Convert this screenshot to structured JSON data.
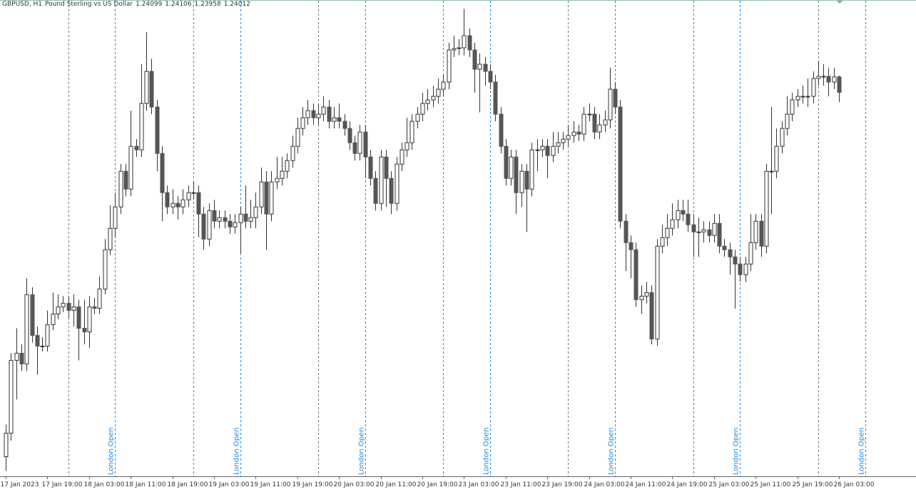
{
  "chart_data": {
    "type": "candlestick",
    "title": "GBPUSD, H1",
    "subtitle": "Pound Sterling vs US Dollar",
    "ylim": [
      1.2186,
      1.2453
    ],
    "categories": [
      "17 Jan 2023",
      null,
      null,
      null,
      null,
      null,
      null,
      null,
      "17 Jan 19:00",
      null,
      null,
      null,
      null,
      null,
      null,
      null,
      "18 Jan 03:00",
      null,
      null,
      null,
      null,
      null,
      null,
      null,
      "18 Jan 11:00",
      null,
      null,
      null,
      null,
      null,
      null,
      null,
      "18 Jan 19:00",
      null,
      null,
      null,
      null,
      null,
      null,
      null,
      "19 Jan 03:00",
      null,
      null,
      null,
      null,
      null,
      null,
      null,
      "19 Jan 11:00",
      null,
      null,
      null,
      null,
      null,
      null,
      null,
      "19 Jan 19:00",
      null,
      null,
      null,
      null,
      null,
      null,
      null,
      "20 Jan 03:00",
      null,
      null,
      null,
      null,
      null,
      null,
      null,
      "20 Jan 11:00",
      null,
      null,
      null,
      null,
      null,
      null,
      null,
      "20 Jan 19:00",
      null,
      null,
      null,
      null,
      null,
      null,
      null,
      "23 Jan 03:00",
      null,
      null,
      null,
      null,
      null,
      null,
      null,
      "23 Jan 11:00",
      null,
      null,
      null,
      null,
      null,
      null,
      null,
      "23 Jan 19:00",
      null,
      null,
      null,
      null,
      null,
      null,
      null,
      "24 Jan 03:00",
      null,
      null,
      null,
      null,
      null,
      null,
      null,
      "24 Jan 11:00",
      null,
      null,
      null,
      null,
      null,
      null,
      null,
      "24 Jan 19:00",
      null,
      null,
      null,
      null,
      null,
      null,
      null,
      "25 Jan 03:00",
      null,
      null,
      null,
      null,
      null,
      null,
      null,
      "25 Jan 11:00",
      null,
      null,
      null,
      null,
      null,
      null,
      null,
      "25 Jan 19:00",
      null,
      null,
      null,
      null,
      null,
      null,
      null,
      "26 Jan 03:00"
    ],
    "open": [
      1.2197,
      1.22102,
      1.2251,
      1.2255,
      1.2249,
      1.22878,
      1.2265,
      1.2259,
      1.2259,
      1.2271,
      1.2277,
      1.2281,
      1.2283,
      1.2279,
      1.2281,
      1.2269,
      1.2267,
      1.2281,
      1.22802,
      1.2291,
      1.2313,
      1.2325,
      1.2337,
      1.2357,
      1.2347,
      1.2371,
      1.2369,
      1.2395,
      1.2413,
      1.2393,
      1.2367,
      1.2345,
      1.2337,
      1.2339,
      1.2337,
      1.2341,
      1.2345,
      1.2345,
      1.2333,
      1.2319,
      1.2335,
      1.2329,
      1.2331,
      1.2329,
      1.23258,
      1.23282,
      1.2333,
      1.2329,
      1.2331,
      1.2337,
      1.2351,
      1.2333,
      1.2351,
      1.2353,
      1.2357,
      1.2363,
      1.2371,
      1.2381,
      1.2387,
      1.2391,
      1.2387,
      1.2389,
      1.2393,
      1.2385,
      1.2387,
      1.2385,
      1.2381,
      1.2373,
      1.2367,
      1.2379,
      1.2365,
      1.2353,
      1.2339,
      1.2365,
      1.2353,
      1.2339,
      1.2361,
      1.2369,
      1.2373,
      1.2385,
      1.2389,
      1.2395,
      1.2397,
      1.2399,
      1.2403,
      1.2407,
      1.2425,
      1.24258,
      1.24262,
      1.2433,
      1.2425,
      1.24142,
      1.2417,
      1.2413,
      1.2407,
      1.2389,
      1.2371,
      1.2353,
      1.2365,
      1.2345,
      1.2357,
      1.2347,
      1.2369,
      1.2369,
      1.2371,
      1.23658,
      1.2371,
      1.2373,
      1.2375,
      1.2377,
      1.2379,
      1.23778,
      1.2389,
      1.2389,
      1.2379,
      1.2383,
      1.23858,
      1.2403,
      1.2393,
      1.2329,
      1.2317,
      1.2313,
      1.2285,
      1.2287,
      1.2289,
      1.2263,
      1.2315,
      1.23198,
      1.2325,
      1.23298,
      1.2335,
      1.2333,
      1.2327,
      1.2323,
      1.2323,
      1.23242,
      1.2321,
      1.23278,
      1.2315,
      1.2313,
      1.2309,
      1.2305,
      1.2299,
      1.2305,
      1.2317,
      1.2329,
      1.2315,
      1.2357,
      1.2357,
      1.2371,
      1.2381,
      1.2389,
      1.2397,
      1.2399,
      1.2399,
      1.2399,
      1.2409,
      1.24102,
      1.24102,
      1.2407,
      1.24099
    ],
    "high": [
      1.2215,
      1.2255,
      1.2269,
      1.226,
      1.2297,
      1.2292,
      1.227,
      1.2264,
      1.2279,
      1.2289,
      1.2288,
      1.2287,
      1.2287,
      1.2288,
      1.2285,
      1.2285,
      1.2287,
      1.2286,
      1.2298,
      1.2319,
      1.2338,
      1.2345,
      1.2361,
      1.2361,
      1.2391,
      1.2375,
      1.2417,
      1.2435,
      1.242,
      1.2397,
      1.2371,
      1.2349,
      1.2347,
      1.2343,
      1.2347,
      1.2349,
      1.2351,
      1.2349,
      1.2337,
      1.2339,
      1.2341,
      1.2335,
      1.2335,
      1.2333,
      1.2333,
      1.2337,
      1.2349,
      1.2341,
      1.2345,
      1.2359,
      1.2357,
      1.2357,
      1.2365,
      1.2365,
      1.2367,
      1.2377,
      1.2387,
      1.2393,
      1.2397,
      1.2395,
      1.2395,
      1.2399,
      1.2397,
      1.2393,
      1.2395,
      1.2389,
      1.2385,
      1.2377,
      1.2383,
      1.2383,
      1.2369,
      1.2357,
      1.2369,
      1.2369,
      1.2357,
      1.2365,
      1.2373,
      1.2387,
      1.2389,
      1.2393,
      1.2401,
      1.2403,
      1.2405,
      1.2409,
      1.2411,
      1.2429,
      1.2433,
      1.2431,
      1.2448,
      1.2437,
      1.2429,
      1.2423,
      1.2421,
      1.2417,
      1.2411,
      1.2393,
      1.2375,
      1.2369,
      1.2369,
      1.2361,
      1.2361,
      1.2373,
      1.2375,
      1.2375,
      1.2375,
      1.2379,
      1.2379,
      1.2379,
      1.2383,
      1.2385,
      1.2383,
      1.2393,
      1.2395,
      1.2393,
      1.2389,
      1.2391,
      1.2415,
      1.2407,
      1.2397,
      1.2333,
      1.2321,
      1.2317,
      1.2293,
      1.2295,
      1.2293,
      1.2319,
      1.2327,
      1.2333,
      1.2339,
      1.2341,
      1.2341,
      1.2341,
      1.2333,
      1.2331,
      1.2329,
      1.2329,
      1.2333,
      1.2333,
      1.2319,
      1.2317,
      1.2313,
      1.2309,
      1.2309,
      1.2333,
      1.2333,
      1.2333,
      1.2361,
      1.2393,
      1.2381,
      1.2385,
      1.2399,
      1.2401,
      1.2403,
      1.2405,
      1.2409,
      1.2413,
      1.2419,
      1.2417,
      1.2415,
      1.2415,
      1.24106
    ],
    "low": [
      1.2189,
      1.2206,
      1.2229,
      1.2245,
      1.2245,
      1.2261,
      1.2243,
      1.2256,
      1.2256,
      1.2268,
      1.2274,
      1.2278,
      1.2275,
      1.227,
      1.2251,
      1.226,
      1.2258,
      1.2277,
      1.2277,
      1.2288,
      1.231,
      1.232,
      1.2333,
      1.2343,
      1.2343,
      1.2365,
      1.2365,
      1.2391,
      1.2389,
      1.2357,
      1.2329,
      1.2333,
      1.2333,
      1.233,
      1.2333,
      1.2337,
      1.2341,
      1.232,
      1.2313,
      1.2315,
      1.2325,
      1.2325,
      1.2325,
      1.2322,
      1.2322,
      1.2311,
      1.2325,
      1.2325,
      1.2325,
      1.2333,
      1.2313,
      1.2329,
      1.2347,
      1.2349,
      1.2353,
      1.2359,
      1.2367,
      1.2377,
      1.2383,
      1.2383,
      1.2383,
      1.2385,
      1.2381,
      1.2381,
      1.2381,
      1.2377,
      1.2369,
      1.2363,
      1.2363,
      1.2353,
      1.2349,
      1.2335,
      1.2335,
      1.2337,
      1.2333,
      1.2335,
      1.2357,
      1.2365,
      1.2369,
      1.2381,
      1.2385,
      1.2391,
      1.2393,
      1.2395,
      1.2399,
      1.2403,
      1.2421,
      1.2422,
      1.2422,
      1.2421,
      1.2401,
      1.239,
      1.2405,
      1.2403,
      1.2385,
      1.2367,
      1.2349,
      1.2349,
      1.2333,
      1.2337,
      1.2323,
      1.2343,
      1.2357,
      1.2365,
      1.2353,
      1.2362,
      1.2367,
      1.2369,
      1.2371,
      1.2373,
      1.2374,
      1.2374,
      1.2385,
      1.2375,
      1.2375,
      1.2379,
      1.2381,
      1.2389,
      1.2325,
      1.2301,
      1.2297,
      1.2281,
      1.2277,
      1.2283,
      1.226,
      1.2259,
      1.2311,
      1.2315,
      1.2321,
      1.2325,
      1.2329,
      1.2323,
      1.2309,
      1.2309,
      1.2317,
      1.2317,
      1.2317,
      1.2311,
      1.2309,
      1.2299,
      1.228,
      1.2295,
      1.2295,
      1.2301,
      1.2313,
      1.2309,
      1.2311,
      1.2333,
      1.2353,
      1.2367,
      1.2377,
      1.2385,
      1.2393,
      1.2395,
      1.2393,
      1.2395,
      1.2405,
      1.2405,
      1.2399,
      1.2403,
      1.23958
    ],
    "close": [
      1.22102,
      1.2251,
      1.2255,
      1.2249,
      1.22878,
      1.2265,
      1.2259,
      1.2259,
      1.2271,
      1.2277,
      1.2281,
      1.2283,
      1.2279,
      1.2281,
      1.2269,
      1.2267,
      1.2281,
      1.22802,
      1.2291,
      1.2313,
      1.2325,
      1.2337,
      1.2357,
      1.2347,
      1.2371,
      1.2369,
      1.2395,
      1.2413,
      1.2393,
      1.2367,
      1.2345,
      1.2337,
      1.2339,
      1.2337,
      1.2341,
      1.2345,
      1.2345,
      1.2333,
      1.2319,
      1.2335,
      1.2329,
      1.2331,
      1.2329,
      1.23258,
      1.23282,
      1.2333,
      1.2329,
      1.2331,
      1.2337,
      1.2351,
      1.2333,
      1.2351,
      1.2353,
      1.2357,
      1.2363,
      1.2371,
      1.2381,
      1.2387,
      1.2391,
      1.2387,
      1.2389,
      1.2393,
      1.2385,
      1.2387,
      1.2385,
      1.2381,
      1.2373,
      1.2367,
      1.2379,
      1.2365,
      1.2353,
      1.2339,
      1.2365,
      1.2353,
      1.2339,
      1.2361,
      1.2369,
      1.2373,
      1.2385,
      1.2389,
      1.2395,
      1.2397,
      1.2399,
      1.2403,
      1.2407,
      1.2425,
      1.24258,
      1.24262,
      1.2433,
      1.2425,
      1.24142,
      1.2417,
      1.2413,
      1.2407,
      1.2389,
      1.2371,
      1.2353,
      1.2365,
      1.2345,
      1.2357,
      1.2347,
      1.2369,
      1.2369,
      1.2371,
      1.23658,
      1.2371,
      1.2373,
      1.2375,
      1.2377,
      1.2379,
      1.23778,
      1.2389,
      1.2389,
      1.2379,
      1.2383,
      1.23858,
      1.2403,
      1.2393,
      1.2329,
      1.2317,
      1.2313,
      1.2285,
      1.2287,
      1.2289,
      1.2263,
      1.2315,
      1.23198,
      1.2325,
      1.23298,
      1.2335,
      1.2333,
      1.2327,
      1.2323,
      1.2323,
      1.23242,
      1.2321,
      1.23278,
      1.2315,
      1.2313,
      1.2309,
      1.2305,
      1.2299,
      1.2305,
      1.2317,
      1.2329,
      1.2315,
      1.2357,
      1.2357,
      1.2371,
      1.2381,
      1.2389,
      1.2397,
      1.2399,
      1.2399,
      1.2399,
      1.2409,
      1.24102,
      1.24102,
      1.2407,
      1.24099,
      1.24012
    ],
    "bull_color": "#ffffff",
    "bear_color": "#555555",
    "wick_color": "#333333",
    "annotations": [
      "London Open",
      "London Open",
      "London Open",
      "London Open",
      "London Open",
      "London Open",
      "London Open"
    ]
  }
}
